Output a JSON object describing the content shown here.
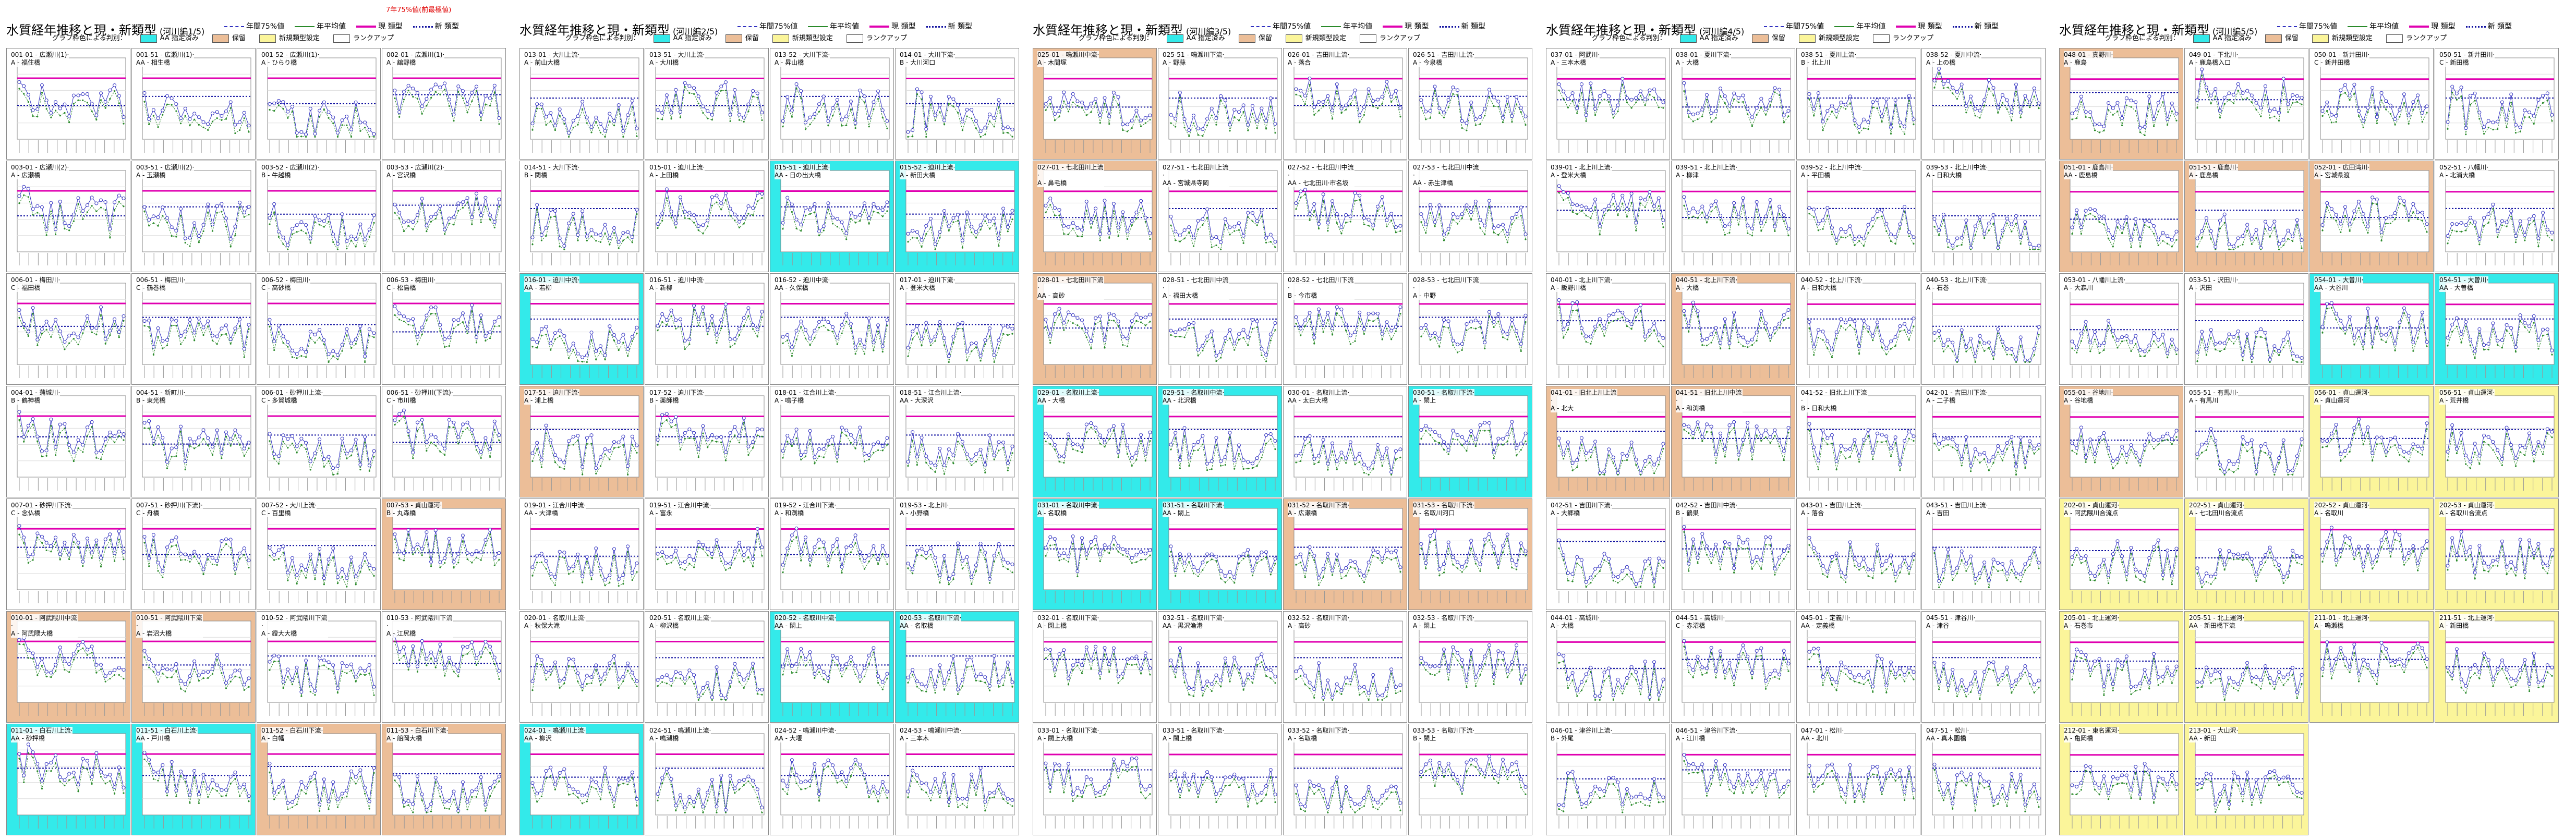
{
  "note": "7年75%値(前最極値)",
  "legend": {
    "p75": "年間75%値",
    "avg": "年平均値",
    "current": "現 類型",
    "new": "新 類型"
  },
  "classification": {
    "label": "グラフ枠色による判別：",
    "items": [
      {
        "label": "AA 指定済み",
        "color": "#33eaea"
      },
      {
        "label": "保留",
        "color": "#ecbe98"
      },
      {
        "label": "新規類型設定",
        "color": "#fbf59a"
      },
      {
        "label": "ランクアップ",
        "color": "#ffffff"
      }
    ]
  },
  "sheets": [
    {
      "title": "水質経年推移と現・新類型",
      "subtitle": "(河川編1/5)"
    },
    {
      "title": "水質経年推移と現・新類型",
      "subtitle": "(河川編2/5)"
    },
    {
      "title": "水質経年推移と現・新類型",
      "subtitle": "(河川編3/5)"
    },
    {
      "title": "水質経年推移と現・新類型",
      "subtitle": "(河川編4/5)"
    },
    {
      "title": "水質経年推移と現・新類型",
      "subtitle": "(河川編5/5)"
    }
  ],
  "chart_data": [
    {
      "sheet": 0,
      "grid": [
        [
          "001-01 - 広瀬川(1)·\nA - 福住橋",
          "001-51 - 広瀬川(1)·\nAA - 相生橋",
          "001-52 - 広瀬川(1)·\nA - ひらり橋",
          "002-01 - 広瀬川(1)·\nA - 舘野橋"
        ],
        [
          "003-01 - 広瀬川(2)·\nA - 広瀬橋",
          "003-51 - 広瀬川(2)·\nA - 玉瀬橋",
          "003-52 - 広瀬川(2)·\nB - 牛越橋",
          "003-53 - 広瀬川(2)·\nA - 宮沢橋"
        ],
        [
          "006-01 - 梅田川·\nC - 福田橋",
          "006-51 - 梅田川·\nC - 鶴巻橋",
          "006-52 - 梅田川·\nC - 高砂橋",
          "006-53 - 梅田川·\nC - 松島橋"
        ],
        [
          "004-01 - 蒲城川·\nB - 鶴神橋",
          "004-51 - 新町川·\nB - 東光橋",
          "006-01 - 砂押川上流·\nC - 多賀城橋",
          "006-51 - 砂押川(下流)·\nC - 市川橋"
        ],
        [
          "007-01 - 砂押川下流·\nC - 念仏橋",
          "007-51 - 砂押川(下流)·\nC - 舟橋",
          "007-52 - 大川上流·\nC - 百里橋",
          "007-53 - 貞山運河·\nB - 丸森橋"
        ],
        [
          "010-01 - 阿武隈川中流·\nA - 阿武隈大橋",
          "010-51 - 阿武隈川下流·\nA - 岩沼大橋",
          "010-52 - 阿武隈川下流·\nA - 鐙大大橋",
          "010-53 - 阿武隈川下流·\nA - 江尻橋"
        ],
        [
          "011-01 - 白石川上流·\nAA - 砂押橋",
          "011-51 - 白石川上流·\nAA - 戸川橋",
          "011-52 - 白石川下流·\nA - 白幡",
          "011-53 - 白石川下流·\nA - 船岡大橋"
        ]
      ],
      "types": [
        [
          "white",
          "white",
          "white",
          "white"
        ],
        [
          "white",
          "white",
          "white",
          "white"
        ],
        [
          "white",
          "white",
          "white",
          "white"
        ],
        [
          "white",
          "white",
          "white",
          "white"
        ],
        [
          "white",
          "white",
          "white",
          "orange"
        ],
        [
          "orange",
          "orange",
          "white",
          "white"
        ],
        [
          "cyan",
          "cyan",
          "orange",
          "orange"
        ]
      ]
    },
    {
      "sheet": 1,
      "grid": [
        [
          "013-01 - 大川上流·\nA - 前山大橋",
          "013-51 - 大川上流·\nA - 大川橋",
          "013-52 - 大川下流·\nA - 昇山橋",
          "014-01 - 大川下流·\nB - 大川河口"
        ],
        [
          "014-51 - 大川下流·\nB - 関橋",
          "015-01 - 迫川上流·\nA - 上田橋",
          "015-51 - 迫川上流·\nAA - 日の出大橋",
          "015-52 - 迫川上流·\nA - 新田大橋"
        ],
        [
          "016-01 - 迫川中流·\nAA - 若柳",
          "016-51 - 迫川中流·\nA - 新柳",
          "016-52 - 迫川中流·\nAA - 久保橋",
          "017-01 - 迫川下流·\nA - 登米大橋"
        ],
        [
          "017-51 - 迫川下流·\nA - 浦上橋",
          "017-52 - 迫川下流·\nB - 薬師橋",
          "018-01 - 江合川上流·\nA - 鳴子橋",
          "018-51 - 江合川上流·\nAA - 大深沢"
        ],
        [
          "019-01 - 江合川中流·\nAA - 大津橋",
          "019-51 - 江合川中流·\nA - 富永",
          "019-52 - 江合川下流·\nA - 和渕橋",
          "019-53 - 北上川·\nA - 小野橋"
        ],
        [
          "020-01 - 名取川上流·\nA - 秋保大滝",
          "020-51 - 名取川上流·\nA - 柳沢橋",
          "020-52 - 名取川中流·\nAA - 閖上",
          "020-53 - 名取川下流·\nAA - 名取橋"
        ],
        [
          "024-01 - 鳴瀬川上流·\nAA - 柳沢",
          "024-51 - 鳴瀬川上流·\nA - 鳴瀬橋",
          "024-52 - 鳴瀬川中流·\nAA - 大堰",
          "024-53 - 鳴瀬川中流·\nA - 三本木"
        ]
      ],
      "types": [
        [
          "white",
          "white",
          "white",
          "white"
        ],
        [
          "white",
          "white",
          "cyan",
          "cyan"
        ],
        [
          "cyan",
          "white",
          "white",
          "white"
        ],
        [
          "orange",
          "white",
          "white",
          "white"
        ],
        [
          "white",
          "white",
          "white",
          "white"
        ],
        [
          "white",
          "white",
          "cyan",
          "cyan"
        ],
        [
          "cyan",
          "white",
          "white",
          "white"
        ]
      ]
    },
    {
      "sheet": 2,
      "grid": [
        [
          "025-01 - 鳴瀬川中流·\nA - 木間塚",
          "025-51 - 鳴瀬川下流·\nA - 野蒜",
          "026-01 - 吉田川上流·\nA - 落合",
          "026-51 - 吉田川上流·\nA - 今泉橋"
        ],
        [
          "027-01 - 七北田川上流·\nA - 鼻毛橋",
          "027-51 - 七北田川上流·\nAA - 宮城県寺岡",
          "027-52 - 七北田川中流·\nAA - 七北田川·市名坂",
          "027-53 - 七北田川中流·\nAA - 赤生津橋"
        ],
        [
          "028-01 - 七北田川下流·\nAA - 高砂",
          "028-51 - 七北田川中流·\nA - 福田大橋",
          "028-52 - 七北田川下流·\nB - 今市橋",
          "028-53 - 七北田川下流·\nA - 中野"
        ],
        [
          "029-01 - 名取川上流·\nAA - 大橋",
          "029-51 - 名取川中流·\nAA - 北沢橋",
          "030-01 - 名取川上流·\nAA - 太白大橋",
          "030-51 - 名取川下流·\nA - 閖上"
        ],
        [
          "031-01 - 名取川中流·\nA - 名取橋",
          "031-51 - 名取川下流·\nAA - 閖上",
          "031-52 - 名取川下流·\nA - 広瀬橋",
          "031-53 - 名取川下流·\nA - 名取川河口"
        ],
        [
          "032-01 - 名取川下流·\nA - 閖上橋",
          "032-51 - 名取川下流·\nAA - 黒沢漁港",
          "032-52 - 名取川下流·\nA - 高砂",
          "032-53 - 名取川下流·\nA - 閖上"
        ],
        [
          "033-01 - 名取川下流·\nA - 閖上大橋",
          "033-51 - 名取川下流·\nA - 閖上橋",
          "033-52 - 名取川下流·\nA - 名取橋",
          "033-53 - 名取川下流·\nB - 閖上"
        ]
      ],
      "types": [
        [
          "orange",
          "white",
          "white",
          "white"
        ],
        [
          "orange",
          "white",
          "white",
          "white"
        ],
        [
          "orange",
          "white",
          "white",
          "white"
        ],
        [
          "cyan",
          "cyan",
          "white",
          "cyan"
        ],
        [
          "cyan",
          "cyan",
          "orange",
          "orange"
        ],
        [
          "white",
          "white",
          "white",
          "white"
        ],
        [
          "white",
          "white",
          "white",
          "white"
        ]
      ]
    },
    {
      "sheet": 3,
      "grid": [
        [
          "037-01 - 阿武川·\nA - 三本木橋",
          "038-01 - 夏川下流·\nA - 大橋",
          "038-51 - 夏川上流·\nB - 北上川",
          "038-52 - 夏川中流·\nA - 上の橋"
        ],
        [
          "039-01 - 北上川上流·\nA - 登米大橋",
          "039-51 - 北上川上流·\nA - 柳津",
          "039-52 - 北上川中流·\nA - 平田橋",
          "039-53 - 北上川中流·\nA - 日和大橋"
        ],
        [
          "040-01 - 北上川下流·\nA - 飯野川橋",
          "040-51 - 北上川下流·\nA - 大橋",
          "040-52 - 北上川下流·\nA - 日和大橋",
          "040-53 - 北上川下流·\nA - 石巻"
        ],
        [
          "041-01 - 旧北上川上流·\nA - 北大",
          "041-51 - 旧北上川中流·\nA - 和渕橋",
          "041-52 - 旧北上川下流·\nB - 日和大橋",
          "042-01 - 吉田川下流·\nA - 二子橋"
        ],
        [
          "042-51 - 吉田川下流·\nA - 大郷橋",
          "042-52 - 吉田川中流·\nB - 鶴巣",
          "043-01 - 吉田川上流·\nA - 落合",
          "043-51 - 吉田川上流·\nA - 吉田"
        ],
        [
          "044-01 - 高城川·\nA - 大橋",
          "044-51 - 高城川·\nC - 赤沼橋",
          "045-01 - 定義川·\nAA - 定義橋",
          "045-51 - 津谷川·\nA - 津谷"
        ],
        [
          "046-01 - 津谷川上流·\nB - 外尾",
          "046-51 - 津谷川下流·\nA - 江川橋",
          "047-01 - 松川·\nAA - 北川",
          "047-51 - 松川·\nAA - 真木園橋"
        ]
      ],
      "types": [
        [
          "white",
          "white",
          "white",
          "white"
        ],
        [
          "white",
          "white",
          "white",
          "white"
        ],
        [
          "white",
          "orange",
          "white",
          "white"
        ],
        [
          "orange",
          "orange",
          "white",
          "white"
        ],
        [
          "white",
          "white",
          "white",
          "white"
        ],
        [
          "white",
          "white",
          "white",
          "white"
        ],
        [
          "white",
          "white",
          "white",
          "white"
        ]
      ]
    },
    {
      "sheet": 4,
      "grid": [
        [
          "048-01 - 真野川·\nA - 鹿島",
          "049-01 - 下北川·\nA - 鹿島橋入口",
          "050-01 - 新井田川·\nC - 新井田橋",
          "050-51 - 新井田川·\nC - 新田橋"
        ],
        [
          "051-01 - 鹿島川·\nAA - 鹿島橋",
          "051-51 - 鹿島川·\nA - 鹿島橋",
          "052-01 - 広田湾川·\nA - 宮城県渡",
          "052-51 - 八幡川·\nA - 北浦大橋"
        ],
        [
          "053-01 - 八幡川上流·\nA - 大森川",
          "053-51 - 沢田川·\nA - 沢田",
          "054-01 - 大曽川·\nAA - 大谷川",
          "054-51 - 大曽川·\nAA - 大曽橋"
        ],
        [
          "055-01 - 谷地川·\nA - 谷地橋",
          "055-51 - 有馬川·\nA - 有馬川",
          "056-01 - 貞山運河·\nA - 貞山運河",
          "056-51 - 貞山運河·\nA - 荒井橋"
        ],
        [
          "202-01 - 貞山運河·\nA - 阿武隈川合流点",
          "202-51 - 貞山運河·\nA - 七北田川合流点",
          "202-52 - 貞山運河·\nA - 名取川",
          "202-53 - 貞山運河·\nA - 名取川合流点"
        ],
        [
          "205-01 - 北上運河·\nA - 石巻市",
          "205-51 - 北上運河·\nAA - 新田橋下流",
          "211-01 - 北上運河·\nA - 鳴瀬橋",
          "211-51 - 北上運河·\nA - 新田橋"
        ],
        [
          "212-01 - 東名運河·\nA - 亀岡橋",
          "213-01 - 大山沢·\nAA - 新田",
          "",
          ""
        ]
      ],
      "types": [
        [
          "orange",
          "white",
          "white",
          "white"
        ],
        [
          "orange",
          "orange",
          "orange",
          "white"
        ],
        [
          "white",
          "white",
          "cyan",
          "cyan"
        ],
        [
          "orange",
          "white",
          "yellow",
          "yellow"
        ],
        [
          "yellow",
          "yellow",
          "yellow",
          "yellow"
        ],
        [
          "yellow",
          "yellow",
          "yellow",
          "yellow"
        ],
        [
          "yellow",
          "yellow",
          "none",
          "none"
        ]
      ]
    }
  ]
}
